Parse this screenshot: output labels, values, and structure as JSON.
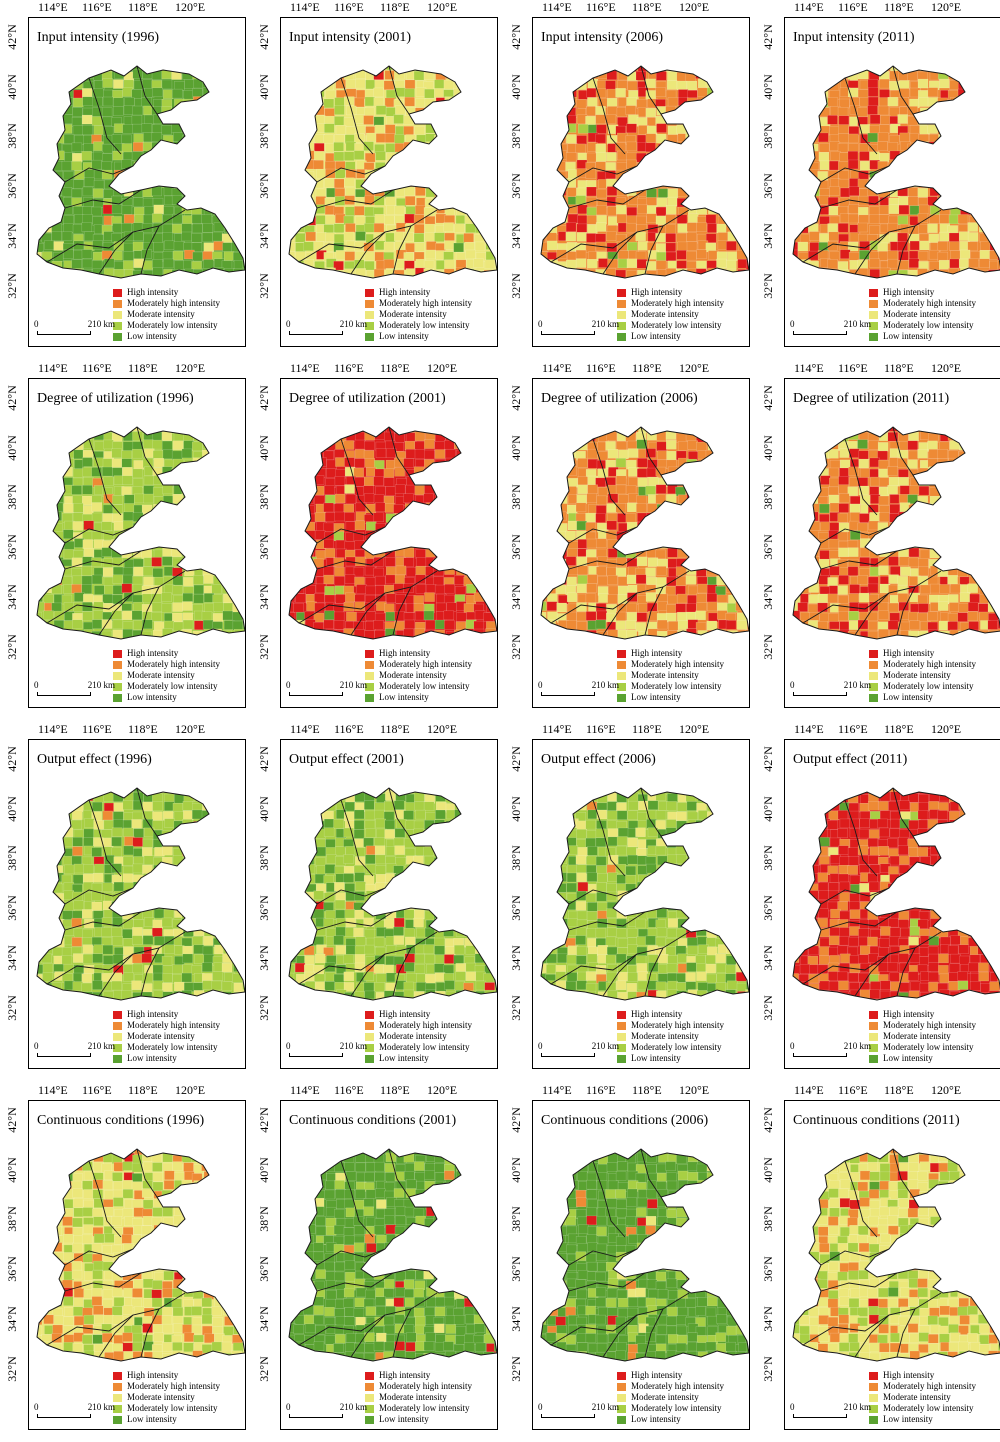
{
  "lon_labels": [
    "114°E",
    "116°E",
    "118°E",
    "120°E"
  ],
  "lat_labels": [
    "42°N",
    "40°N",
    "38°N",
    "36°N",
    "34°N",
    "32°N"
  ],
  "legend": [
    {
      "label": "High intensity",
      "color": "#dd1c1c"
    },
    {
      "label": "Moderately high intensity",
      "color": "#ee8a35"
    },
    {
      "label": "Moderate intensity",
      "color": "#ece77a"
    },
    {
      "label": "Moderately low intensity",
      "color": "#a8cf44"
    },
    {
      "label": "Low intensity",
      "color": "#5aa231"
    }
  ],
  "scale_bar": {
    "start": "0",
    "end": "210 km"
  },
  "panels": [
    {
      "title": "Input intensity (1996)",
      "dominant": "Low intensity"
    },
    {
      "title": "Input intensity (2001)",
      "dominant": "Moderate intensity"
    },
    {
      "title": "Input intensity (2006)",
      "dominant": "Moderately high intensity"
    },
    {
      "title": "Input intensity (2011)",
      "dominant": "Moderately high intensity"
    },
    {
      "title": "Degree of utilization (1996)",
      "dominant": "Moderately low intensity"
    },
    {
      "title": "Degree of utilization (2001)",
      "dominant": "High intensity"
    },
    {
      "title": "Degree of utilization (2006)",
      "dominant": "Moderately high intensity"
    },
    {
      "title": "Degree of utilization (2011)",
      "dominant": "Moderately high intensity"
    },
    {
      "title": "Output effect (1996)",
      "dominant": "Moderately low intensity"
    },
    {
      "title": "Output effect (2001)",
      "dominant": "Moderately low intensity"
    },
    {
      "title": "Output effect (2006)",
      "dominant": "Moderately low intensity"
    },
    {
      "title": "Output effect (2011)",
      "dominant": "High intensity"
    },
    {
      "title": "Continuous conditions (1996)",
      "dominant": "Moderate intensity"
    },
    {
      "title": "Continuous conditions (2001)",
      "dominant": "Low intensity"
    },
    {
      "title": "Continuous conditions (2006)",
      "dominant": "Low intensity"
    },
    {
      "title": "Continuous conditions (2011)",
      "dominant": "Moderate intensity"
    }
  ]
}
